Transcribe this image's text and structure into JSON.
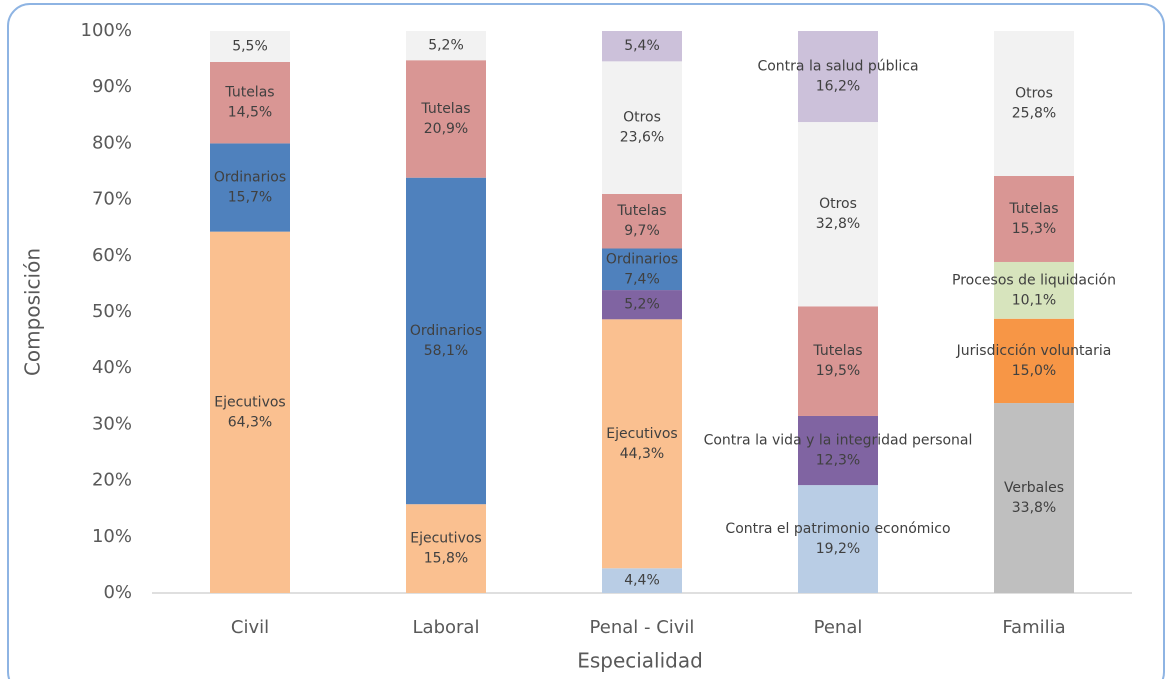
{
  "chart_data": {
    "type": "stacked_bar",
    "x_label": "Especialidad",
    "y_label": "Composición",
    "ylim": [
      0,
      100
    ],
    "yticks": [
      {
        "value": 0,
        "label": "0%"
      },
      {
        "value": 10,
        "label": "10%"
      },
      {
        "value": 20,
        "label": "20%"
      },
      {
        "value": 30,
        "label": "30%"
      },
      {
        "value": 40,
        "label": "40%"
      },
      {
        "value": 50,
        "label": "50%"
      },
      {
        "value": 60,
        "label": "60%"
      },
      {
        "value": 70,
        "label": "70%"
      },
      {
        "value": 80,
        "label": "80%"
      },
      {
        "value": 90,
        "label": "90%"
      },
      {
        "value": 100,
        "label": "100%"
      }
    ],
    "grid": false,
    "stacks": [
      {
        "category": "Civil",
        "segments": [
          {
            "name": "Ejecutivos",
            "value": 64.3,
            "value_label": "64,3%",
            "color": "#fac090"
          },
          {
            "name": "Ordinarios",
            "value": 15.7,
            "value_label": "15,7%",
            "color": "#4f81bd"
          },
          {
            "name": "Tutelas",
            "value": 14.5,
            "value_label": "14,5%",
            "color": "#d99694"
          },
          {
            "value": 5.5,
            "value_label": "5,5%",
            "color": "#f2f2f2"
          }
        ]
      },
      {
        "category": "Laboral",
        "segments": [
          {
            "name": "Ejecutivos",
            "value": 15.8,
            "value_label": "15,8%",
            "color": "#fac090"
          },
          {
            "name": "Ordinarios",
            "value": 58.1,
            "value_label": "58,1%",
            "color": "#4f81bd"
          },
          {
            "name": "Tutelas",
            "value": 20.9,
            "value_label": "20,9%",
            "color": "#d99694"
          },
          {
            "value": 5.2,
            "value_label": "5,2%",
            "color": "#f2f2f2"
          }
        ]
      },
      {
        "category": "Penal  - Civil",
        "segments": [
          {
            "value": 4.4,
            "value_label": "4,4%",
            "color": "#b9cde5"
          },
          {
            "name": "Ejecutivos",
            "value": 44.3,
            "value_label": "44,3%",
            "color": "#fac090"
          },
          {
            "value": 5.2,
            "value_label": "5,2%",
            "color": "#8064a2"
          },
          {
            "name": "Ordinarios",
            "value": 7.4,
            "value_label": "7,4%",
            "color": "#4f81bd"
          },
          {
            "name": "Tutelas",
            "value": 9.7,
            "value_label": "9,7%",
            "color": "#d99694"
          },
          {
            "name": "Otros",
            "value": 23.6,
            "value_label": "23,6%",
            "color": "#f2f2f2"
          },
          {
            "value": 5.4,
            "value_label": "5,4%",
            "color": "#ccc1da"
          }
        ]
      },
      {
        "category": "Penal",
        "segments": [
          {
            "name": "Contra el patrimonio económico",
            "value": 19.2,
            "value_label": "19,2%",
            "color": "#b9cde5"
          },
          {
            "name": "Contra la vida y la integridad personal",
            "value": 12.3,
            "value_label": "12,3%",
            "color": "#8064a2"
          },
          {
            "name": "Tutelas",
            "value": 19.5,
            "value_label": "19,5%",
            "color": "#d99694"
          },
          {
            "name": "Otros",
            "value": 32.8,
            "value_label": "32,8%",
            "color": "#f2f2f2"
          },
          {
            "name": "Contra la salud pública",
            "value": 16.2,
            "value_label": "16,2%",
            "color": "#ccc1da"
          }
        ]
      },
      {
        "category": "Familia",
        "segments": [
          {
            "name": "Verbales",
            "value": 33.8,
            "value_label": "33,8%",
            "color": "#bfbfbf"
          },
          {
            "name": "Jurisdicción voluntaria",
            "value": 15.0,
            "value_label": "15,0%",
            "color": "#f79646"
          },
          {
            "name": "Procesos de liquidación",
            "value": 10.1,
            "value_label": "10,1%",
            "color": "#d7e4bd"
          },
          {
            "name": "Tutelas",
            "value": 15.3,
            "value_label": "15,3%",
            "color": "#d99694"
          },
          {
            "name": "Otros",
            "value": 25.8,
            "value_label": "25,8%",
            "color": "#f2f2f2"
          }
        ]
      }
    ]
  }
}
